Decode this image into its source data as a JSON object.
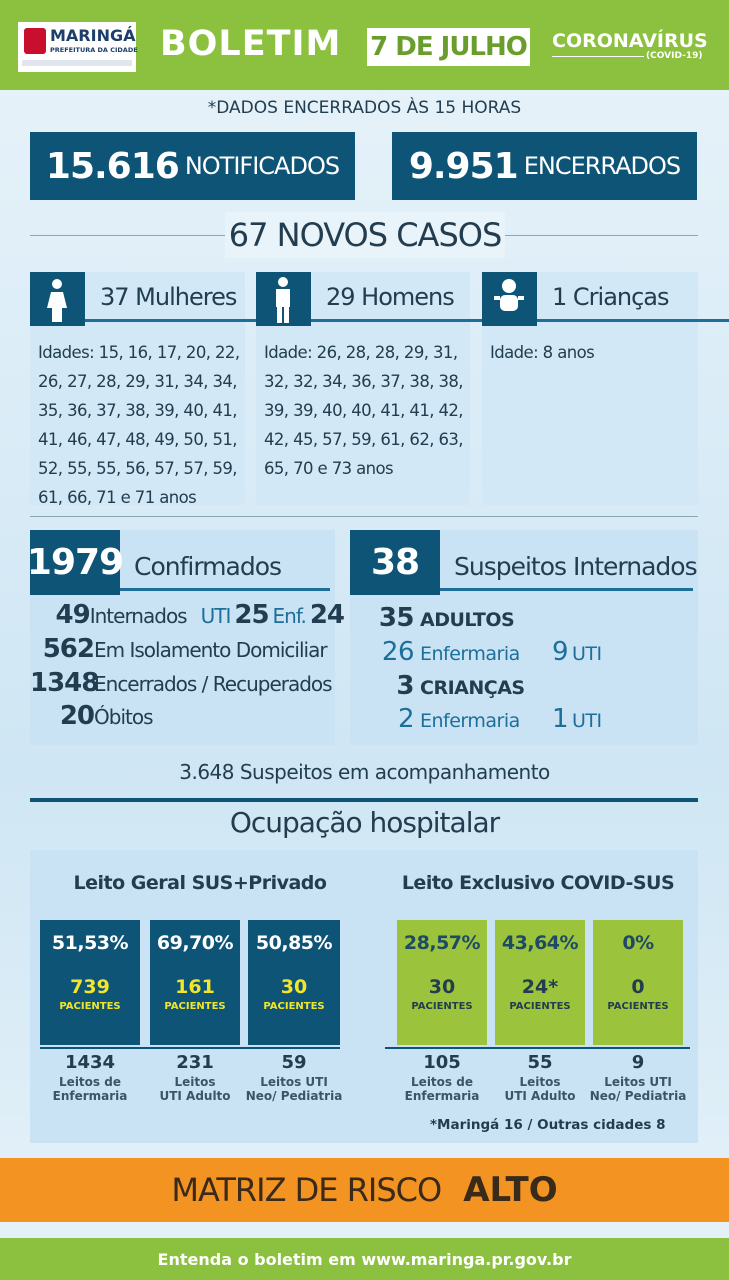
{
  "header": {
    "logo_name": "MARINGÁ",
    "logo_sub": "PREFEITURA DA CIDADE",
    "title": "BOLETIM",
    "date": "7 DE JULHO",
    "brand": "CORONAVÍRUS",
    "brand_sub": "(COVID-19)"
  },
  "note": "*DADOS ENCERRADOS ÀS 15 HORAS",
  "totals": [
    {
      "number": "15.616",
      "label": "NOTIFICADOS"
    },
    {
      "number": "9.951",
      "label": "ENCERRADOS"
    }
  ],
  "new_cases": "67 NOVOS CASOS",
  "groups": [
    {
      "title": "37 Mulheres",
      "ages": "Idades: 15, 16, 17, 20, 22, 26, 27, 28, 29, 31, 34, 34, 35, 36, 37, 38, 39, 40, 41, 41, 46, 47, 48, 49, 50, 51, 52, 55, 55, 56, 57, 57, 59, 61, 66, 71 e 71 anos"
    },
    {
      "title": "29 Homens",
      "ages": "Idade: 26, 28, 28, 29, 31, 32, 32, 34, 36, 37, 38, 38, 39, 39, 40, 40, 41, 41, 42, 42, 45, 57, 59, 61, 62, 63, 65, 70 e 73 anos"
    },
    {
      "title": "1 Crianças",
      "ages": "Idade: 8 anos"
    }
  ],
  "confirmed": {
    "number": "1979",
    "label": "Confirmados",
    "rows": [
      [
        "49",
        "Internados",
        "UTI",
        "25",
        "Enf.",
        "24"
      ],
      [
        "562",
        "Em Isolamento Domiciliar"
      ],
      [
        "1348",
        "Encerrados / Recuperados"
      ],
      [
        "20",
        "Óbitos"
      ]
    ]
  },
  "suspects": {
    "number": "38",
    "label": "Suspeitos Internados",
    "rows": [
      [
        "35",
        "ADULTOS"
      ],
      [
        "26",
        "Enfermaria",
        "9",
        "UTI"
      ],
      [
        "3",
        "CRIANÇAS"
      ],
      [
        "2",
        "Enfermaria",
        "1",
        "UTI"
      ]
    ]
  },
  "monitoring": "3.648 Suspeitos em acompanhamento",
  "occupancy": {
    "title": "Ocupação hospitalar",
    "panels": [
      {
        "title": "Leito Geral SUS+Privado",
        "boxes": [
          {
            "pct": "51,53%",
            "count": "739",
            "unit": "PACIENTES",
            "beds": "1434",
            "bed_label": [
              "Leitos de",
              "Enfermaria"
            ]
          },
          {
            "pct": "69,70%",
            "count": "161",
            "unit": "PACIENTES",
            "beds": "231",
            "bed_label": [
              "Leitos",
              "UTI Adulto"
            ]
          },
          {
            "pct": "50,85%",
            "count": "30",
            "unit": "PACIENTES",
            "beds": "59",
            "bed_label": [
              "Leitos UTI",
              "Neo/ Pediatria"
            ]
          }
        ]
      },
      {
        "title": "Leito Exclusivo COVID-SUS",
        "boxes": [
          {
            "pct": "28,57%",
            "count": "30",
            "unit": "PACIENTES",
            "beds": "105",
            "bed_label": [
              "Leitos de",
              "Enfermaria"
            ]
          },
          {
            "pct": "43,64%",
            "count": "24*",
            "unit": "PACIENTES",
            "beds": "55",
            "bed_label": [
              "Leitos",
              "UTI Adulto"
            ]
          },
          {
            "pct": "0%",
            "count": "0",
            "unit": "PACIENTES",
            "beds": "9",
            "bed_label": [
              "Leitos UTI",
              "Neo/ Pediatria"
            ]
          }
        ],
        "note": "*Maringá 16 / Outras cidades 8"
      }
    ]
  },
  "risk": {
    "label": "MATRIZ DE RISCO",
    "level": "ALTO"
  },
  "footer": "Entenda o boletim em www.maringa.pr.gov.br"
}
